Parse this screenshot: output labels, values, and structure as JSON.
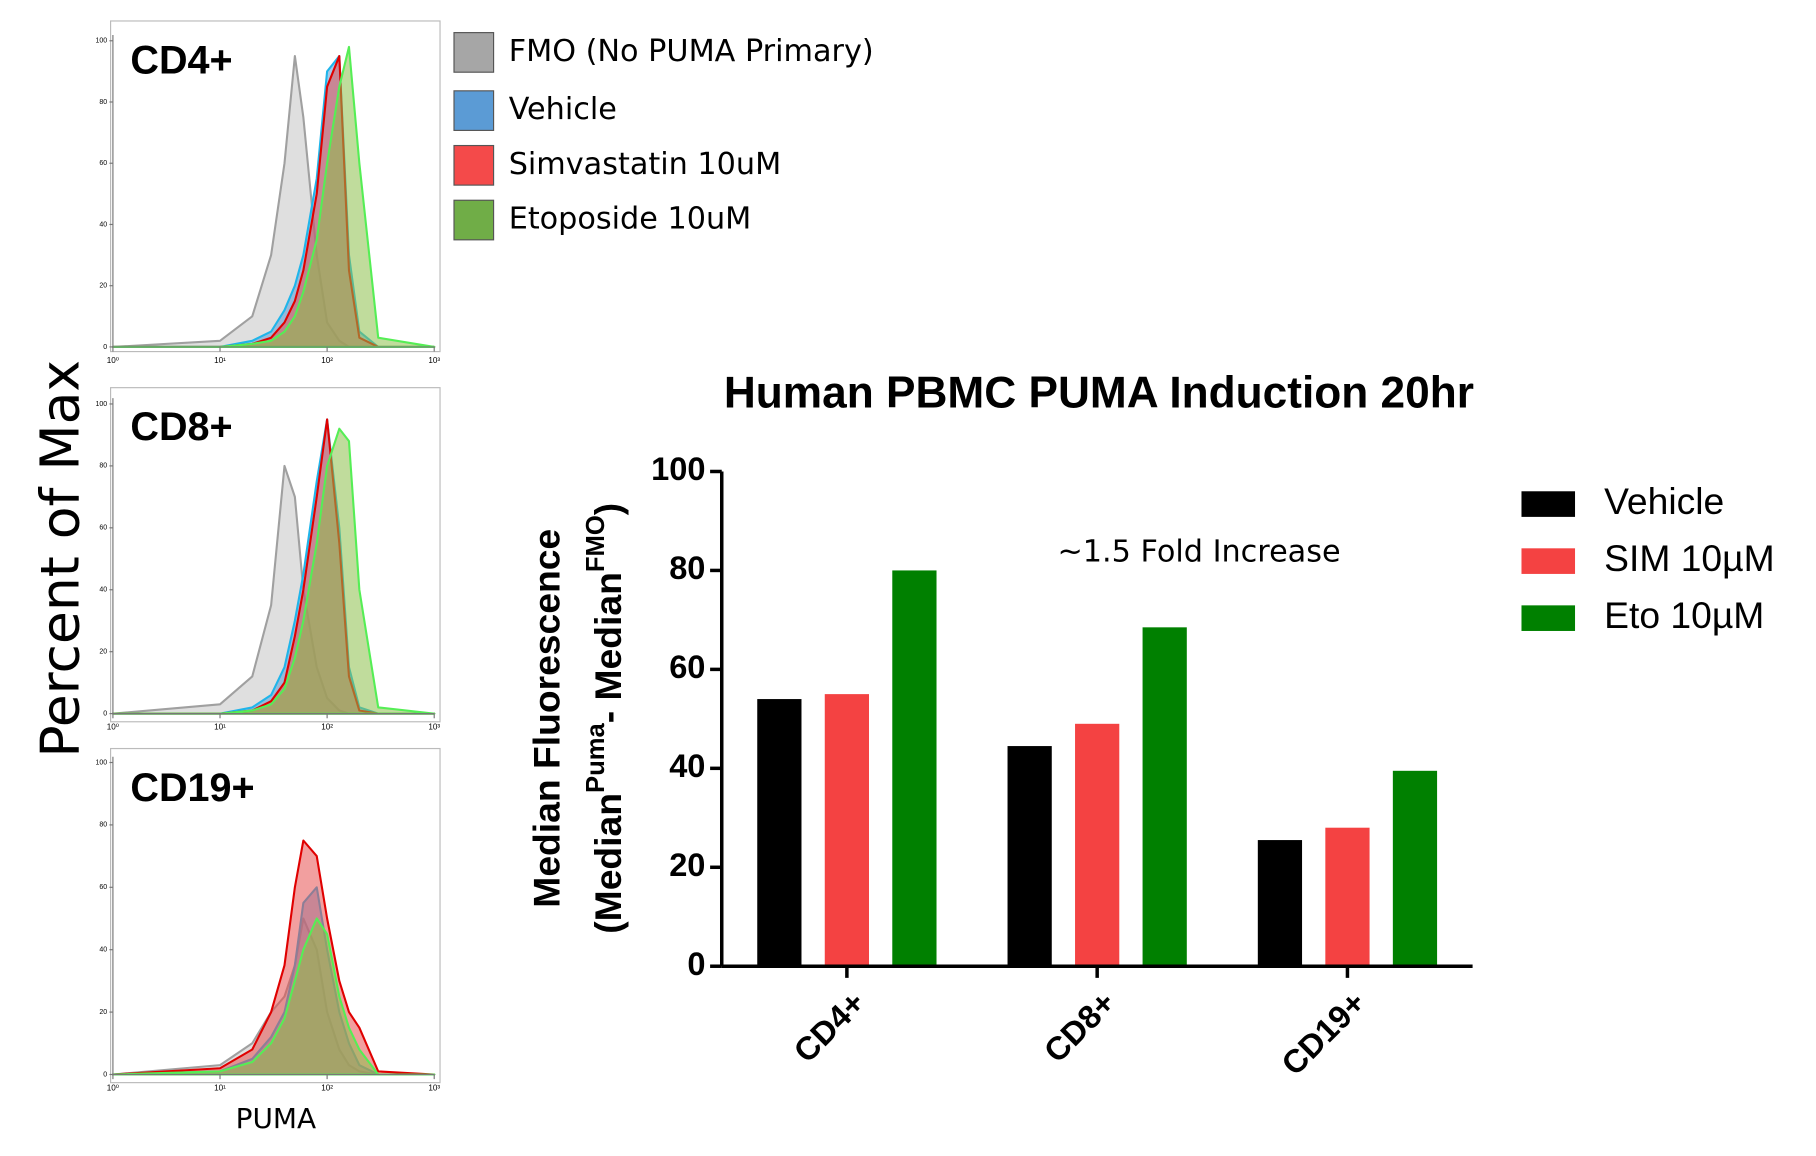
{
  "shared_labels": {
    "ylabel": "Percent of Max",
    "xlabel": "PUMA"
  },
  "histogram_legend": [
    {
      "name": "FMO (No PUMA Primary)",
      "color": "#a6a6a6"
    },
    {
      "name": "Vehicle",
      "color": "#5b9bd5"
    },
    {
      "name": "Simvastatin 10uM",
      "color": "#f44a4a"
    },
    {
      "name": "Etoposide 10uM",
      "color": "#70ad47"
    }
  ],
  "chart_data": [
    {
      "type": "area",
      "title": "CD4+",
      "log_x": true,
      "xlim": [
        1,
        1000
      ],
      "xticks": [
        {
          "value": 1,
          "label": "10⁰"
        },
        {
          "value": 10,
          "label": "10¹"
        },
        {
          "value": 100,
          "label": "10²"
        },
        {
          "value": 1000,
          "label": "10³"
        }
      ],
      "ylim": [
        0,
        100
      ],
      "yticks": [
        0,
        20,
        40,
        60,
        80,
        100
      ],
      "x": [
        1,
        10,
        20,
        30,
        40,
        50,
        60,
        80,
        100,
        130,
        160,
        200,
        300,
        1000
      ],
      "series": [
        {
          "color": "#c4c4c4",
          "edge_color": "#a0a0a0",
          "values": [
            0,
            2,
            10,
            30,
            60,
            95,
            75,
            30,
            8,
            2,
            0,
            0,
            0,
            0
          ]
        },
        {
          "color": "#5b9bd5",
          "edge_color": "#1fb5ea",
          "values": [
            0,
            0,
            2,
            5,
            12,
            20,
            30,
            55,
            90,
            95,
            30,
            5,
            0,
            0
          ]
        },
        {
          "color": "#e85050",
          "edge_color": "#e00000",
          "values": [
            0,
            0,
            1,
            3,
            8,
            15,
            25,
            50,
            85,
            95,
            25,
            3,
            0,
            0
          ]
        },
        {
          "color": "#8cc04a",
          "edge_color": "#55ee55",
          "values": [
            0,
            0,
            1,
            2,
            5,
            10,
            18,
            35,
            60,
            85,
            98,
            60,
            3,
            0
          ]
        }
      ]
    },
    {
      "type": "area",
      "title": "CD8+",
      "log_x": true,
      "xlim": [
        1,
        1000
      ],
      "xticks": [
        {
          "value": 1,
          "label": "10⁰"
        },
        {
          "value": 10,
          "label": "10¹"
        },
        {
          "value": 100,
          "label": "10²"
        },
        {
          "value": 1000,
          "label": "10³"
        }
      ],
      "ylim": [
        0,
        100
      ],
      "yticks": [
        0,
        20,
        40,
        60,
        80,
        100
      ],
      "x": [
        1,
        10,
        20,
        30,
        40,
        50,
        60,
        80,
        100,
        130,
        160,
        200,
        300,
        1000
      ],
      "series": [
        {
          "color": "#c4c4c4",
          "edge_color": "#a0a0a0",
          "values": [
            0,
            3,
            12,
            35,
            80,
            70,
            40,
            15,
            5,
            1,
            0,
            0,
            0,
            0
          ]
        },
        {
          "color": "#5b9bd5",
          "edge_color": "#1fb5ea",
          "values": [
            0,
            0,
            2,
            6,
            15,
            30,
            45,
            75,
            95,
            60,
            15,
            2,
            0,
            0
          ]
        },
        {
          "color": "#e85050",
          "edge_color": "#e00000",
          "values": [
            0,
            0,
            1,
            4,
            10,
            25,
            40,
            70,
            95,
            55,
            12,
            1,
            0,
            0
          ]
        },
        {
          "color": "#8cc04a",
          "edge_color": "#55ee55",
          "values": [
            0,
            0,
            1,
            3,
            8,
            18,
            30,
            55,
            80,
            92,
            88,
            40,
            2,
            0
          ]
        }
      ]
    },
    {
      "type": "area",
      "title": "CD19+",
      "log_x": true,
      "xlim": [
        1,
        1000
      ],
      "xticks": [
        {
          "value": 1,
          "label": "10⁰"
        },
        {
          "value": 10,
          "label": "10¹"
        },
        {
          "value": 100,
          "label": "10²"
        },
        {
          "value": 1000,
          "label": "10³"
        }
      ],
      "ylim": [
        0,
        100
      ],
      "yticks": [
        0,
        20,
        40,
        60,
        80,
        100
      ],
      "x": [
        1,
        10,
        20,
        30,
        40,
        50,
        60,
        80,
        100,
        130,
        160,
        200,
        300,
        1000
      ],
      "series": [
        {
          "color": "#c4c4c4",
          "edge_color": "#a0a0a0",
          "values": [
            0,
            3,
            10,
            20,
            25,
            35,
            50,
            40,
            20,
            8,
            3,
            1,
            0,
            0
          ]
        },
        {
          "color": "#5b9bd5",
          "edge_color": "#1fb5ea",
          "values": [
            0,
            1,
            5,
            12,
            20,
            35,
            55,
            60,
            40,
            20,
            10,
            3,
            0,
            0
          ]
        },
        {
          "color": "#e85050",
          "edge_color": "#e00000",
          "values": [
            0,
            2,
            8,
            20,
            35,
            60,
            75,
            70,
            50,
            30,
            20,
            15,
            1,
            0
          ]
        },
        {
          "color": "#8cc04a",
          "edge_color": "#55ee55",
          "values": [
            0,
            1,
            4,
            10,
            18,
            30,
            40,
            50,
            45,
            25,
            15,
            8,
            0,
            0
          ]
        }
      ]
    },
    {
      "type": "bar",
      "title": "Human  PBMC PUMA Induction 20hr",
      "ylabel": {
        "line1": "Median  Fluorescence",
        "line2": [
          "(Median",
          "Puma",
          "- Median",
          "FMO",
          ")"
        ]
      },
      "annotation": "~1.5 Fold Increase",
      "categories": [
        "CD4+",
        "CD8+",
        "CD19+"
      ],
      "series": [
        {
          "name": "Vehicle",
          "color": "#000000",
          "values": [
            54,
            44.5,
            25.5
          ]
        },
        {
          "name": "SIM 10µM",
          "color": "#f44242",
          "values": [
            55,
            49,
            28
          ]
        },
        {
          "name": "Eto 10µM",
          "color": "#008000",
          "values": [
            80,
            68.5,
            39.5
          ]
        }
      ],
      "ylim": [
        0,
        100
      ],
      "yticks": [
        0,
        20,
        40,
        60,
        80,
        100
      ]
    }
  ]
}
